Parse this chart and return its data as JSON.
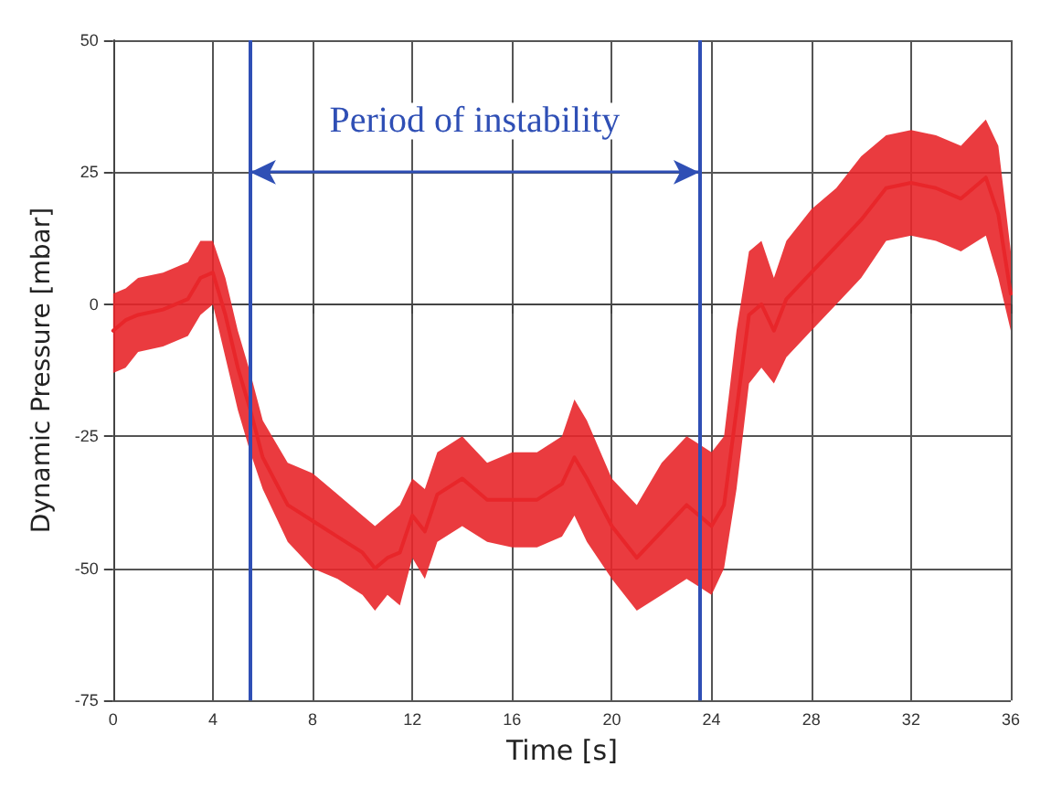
{
  "chart_data": {
    "type": "line",
    "xlabel": "Time [s]",
    "ylabel": "Dynamic Pressure [mbar]",
    "x": [
      0,
      0.5,
      1,
      2,
      3,
      3.5,
      4,
      4.5,
      5,
      5.5,
      6,
      7,
      8,
      9,
      10,
      10.5,
      11,
      11.5,
      12,
      12.5,
      13,
      14,
      15,
      16,
      17,
      18,
      18.5,
      19,
      20,
      21,
      22,
      23,
      24,
      24.5,
      25,
      25.5,
      26,
      26.5,
      27,
      28,
      29,
      30,
      31,
      32,
      33,
      34,
      35,
      35.5,
      36
    ],
    "series": [
      {
        "color": "#e8262a",
        "values": [
          -5,
          -3,
          -2,
          -1,
          1,
          5,
          6,
          -2,
          -12,
          -20,
          -29,
          -38,
          -41,
          -44,
          -47,
          -50,
          -48,
          -47,
          -40,
          -43,
          -36,
          -33,
          -37,
          -37,
          -37,
          -34,
          -29,
          -33,
          -42,
          -48,
          -43,
          -38,
          -42,
          -38,
          -20,
          -2,
          0,
          -5,
          1,
          6,
          11,
          16,
          22,
          23,
          22,
          20,
          24,
          17,
          2
        ],
        "upper": [
          2,
          3,
          5,
          6,
          8,
          12,
          12,
          5,
          -5,
          -13,
          -22,
          -30,
          -32,
          -36,
          -40,
          -42,
          -40,
          -38,
          -33,
          -35,
          -28,
          -25,
          -30,
          -28,
          -28,
          -25,
          -18,
          -22,
          -33,
          -38,
          -30,
          -25,
          -28,
          -25,
          -5,
          10,
          12,
          5,
          12,
          18,
          22,
          28,
          32,
          33,
          32,
          30,
          35,
          30,
          10
        ],
        "lower": [
          -13,
          -12,
          -9,
          -8,
          -6,
          -2,
          0,
          -10,
          -20,
          -28,
          -35,
          -45,
          -50,
          -52,
          -55,
          -58,
          -55,
          -57,
          -48,
          -52,
          -45,
          -42,
          -45,
          -46,
          -46,
          -44,
          -40,
          -45,
          -52,
          -58,
          -55,
          -52,
          -55,
          -50,
          -35,
          -15,
          -12,
          -15,
          -10,
          -5,
          0,
          5,
          12,
          13,
          12,
          10,
          13,
          5,
          -5
        ]
      }
    ],
    "xlim": [
      0,
      36
    ],
    "xticks": [
      0,
      4,
      8,
      12,
      16,
      20,
      24,
      28,
      32,
      36
    ],
    "ylim": [
      -75,
      50
    ],
    "yticks": [
      -75,
      -50,
      -25,
      0,
      25,
      50
    ],
    "grid": true,
    "marker": "none",
    "line_style": "solid",
    "ref_lines": [
      {
        "axis": "x",
        "value": 5.5,
        "label": null,
        "color": "#2f4fb5"
      },
      {
        "axis": "x",
        "value": 23.5,
        "label": null,
        "color": "#2f4fb5"
      }
    ],
    "annotations": [
      "Period of instability"
    ]
  }
}
